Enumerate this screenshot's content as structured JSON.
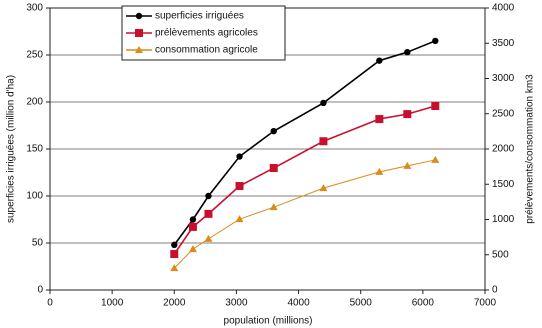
{
  "chart_data": {
    "type": "line",
    "x": [
      2000,
      2300,
      2550,
      3050,
      3600,
      4400,
      5300,
      5750,
      6200
    ],
    "series": [
      {
        "name": "superficies irriguées",
        "color": "#000000",
        "marker": "circle",
        "values": [
          48,
          75,
          100,
          142,
          169,
          199,
          244,
          253,
          265
        ]
      },
      {
        "name": "prélèvements agricoles",
        "color": "#c8102e",
        "marker": "square",
        "axis": "y2",
        "values": [
          510,
          895,
          1080,
          1475,
          1730,
          2110,
          2425,
          2495,
          2610
        ]
      },
      {
        "name": "consommation agricole",
        "color": "#d98c1a",
        "marker": "triangle",
        "axis": "y2",
        "values": [
          310,
          580,
          725,
          1005,
          1175,
          1445,
          1675,
          1760,
          1845
        ]
      }
    ],
    "xlabel": "population (millions)",
    "ylabel": "superficies irriguées (million d'ha)",
    "y2label": "prélèvements/consommation km3",
    "xlim": [
      0,
      7000
    ],
    "xticks": [
      0,
      1000,
      2000,
      3000,
      4000,
      5000,
      6000,
      7000
    ],
    "ylim": [
      0,
      300
    ],
    "yticks": [
      0,
      50,
      100,
      150,
      200,
      250,
      300
    ],
    "y2lim": [
      0,
      4000
    ],
    "y2ticks": [
      0,
      500,
      1000,
      1500,
      2000,
      2500,
      3000,
      3500,
      4000
    ],
    "grid": true,
    "legend": "top"
  }
}
